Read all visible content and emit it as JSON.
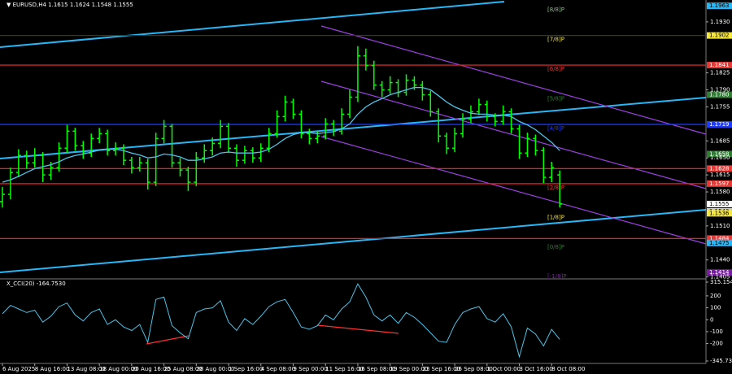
{
  "chart_data": {
    "type": "ohlc",
    "title": "▼ EURUSD,H4 1.1615 1.1624 1.1548 1.1555",
    "color": "#00ff00",
    "ma_color": "#4fc3e8",
    "categories": [
      "6 Aug 2025",
      null,
      null,
      null,
      "8 Aug 16:00",
      null,
      null,
      null,
      "13 Aug 08:00",
      null,
      null,
      null,
      "18 Aug 00:00",
      null,
      null,
      null,
      "20 Aug 16:00",
      null,
      null,
      null,
      "25 Aug 08:00",
      null,
      null,
      null,
      "28 Aug 00:00",
      null,
      null,
      null,
      "1 Sep 16:00",
      null,
      null,
      null,
      "4 Sep 08:00",
      null,
      null,
      null,
      "9 Sep 00:00",
      null,
      null,
      null,
      "11 Sep 16:00",
      null,
      null,
      null,
      "16 Sep 08:00",
      null,
      null,
      null,
      "19 Sep 00:00",
      null,
      null,
      null,
      "23 Sep 16:00",
      null,
      null,
      null,
      "26 Sep 08:00",
      null,
      null,
      null,
      "1 Oct 00:00",
      null,
      null,
      null,
      "3 Oct 16:00",
      null,
      null,
      null,
      "8 Oct 08:00",
      null
    ],
    "candles": [
      [
        1.156,
        1.159,
        1.1548,
        1.1575
      ],
      [
        1.1575,
        1.163,
        1.1565,
        1.162
      ],
      [
        1.162,
        1.1668,
        1.161,
        1.1655
      ],
      [
        1.1655,
        1.1665,
        1.1628,
        1.164
      ],
      [
        1.164,
        1.167,
        1.163,
        1.1655
      ],
      [
        1.1655,
        1.1662,
        1.16,
        1.1615
      ],
      [
        1.1615,
        1.1642,
        1.1605,
        1.163
      ],
      [
        1.163,
        1.1682,
        1.1622,
        1.167
      ],
      [
        1.167,
        1.1718,
        1.166,
        1.1705
      ],
      [
        1.1705,
        1.1712,
        1.1665,
        1.1675
      ],
      [
        1.1675,
        1.1685,
        1.1648,
        1.166
      ],
      [
        1.166,
        1.17,
        1.1652,
        1.169
      ],
      [
        1.169,
        1.1712,
        1.168,
        1.17
      ],
      [
        1.17,
        1.1708,
        1.1655,
        1.1665
      ],
      [
        1.1665,
        1.1682,
        1.1655,
        1.167
      ],
      [
        1.167,
        1.1678,
        1.1635,
        1.1645
      ],
      [
        1.1645,
        1.1652,
        1.1618,
        1.163
      ],
      [
        1.163,
        1.1652,
        1.1622,
        1.164
      ],
      [
        1.164,
        1.1648,
        1.1585,
        1.16
      ],
      [
        1.16,
        1.1702,
        1.1592,
        1.169
      ],
      [
        1.169,
        1.1728,
        1.168,
        1.1715
      ],
      [
        1.1715,
        1.172,
        1.163,
        1.164
      ],
      [
        1.164,
        1.165,
        1.1612,
        1.1625
      ],
      [
        1.1625,
        1.1632,
        1.1582,
        1.16
      ],
      [
        1.16,
        1.1662,
        1.1592,
        1.165
      ],
      [
        1.165,
        1.1678,
        1.164,
        1.1665
      ],
      [
        1.1665,
        1.1692,
        1.1655,
        1.168
      ],
      [
        1.168,
        1.1728,
        1.167,
        1.1715
      ],
      [
        1.1715,
        1.1722,
        1.166,
        1.167
      ],
      [
        1.167,
        1.1678,
        1.1632,
        1.1645
      ],
      [
        1.1645,
        1.1675,
        1.1638,
        1.1665
      ],
      [
        1.1665,
        1.1672,
        1.164,
        1.165
      ],
      [
        1.165,
        1.168,
        1.1642,
        1.167
      ],
      [
        1.167,
        1.1712,
        1.1662,
        1.17
      ],
      [
        1.17,
        1.1748,
        1.1692,
        1.1735
      ],
      [
        1.1735,
        1.1778,
        1.1725,
        1.1765
      ],
      [
        1.1765,
        1.1772,
        1.173,
        1.174
      ],
      [
        1.174,
        1.1748,
        1.169,
        1.17
      ],
      [
        1.17,
        1.171,
        1.1678,
        1.169
      ],
      [
        1.169,
        1.1705,
        1.168,
        1.1695
      ],
      [
        1.1695,
        1.1732,
        1.1688,
        1.172
      ],
      [
        1.172,
        1.1728,
        1.1695,
        1.1705
      ],
      [
        1.1705,
        1.1752,
        1.1698,
        1.174
      ],
      [
        1.174,
        1.179,
        1.1732,
        1.1775
      ],
      [
        1.1775,
        1.188,
        1.1765,
        1.186
      ],
      [
        1.186,
        1.1875,
        1.183,
        1.184
      ],
      [
        1.184,
        1.185,
        1.179,
        1.18
      ],
      [
        1.18,
        1.1808,
        1.1775,
        1.179
      ],
      [
        1.179,
        1.1818,
        1.1782,
        1.1805
      ],
      [
        1.1805,
        1.1812,
        1.1775,
        1.1785
      ],
      [
        1.1785,
        1.1822,
        1.1778,
        1.181
      ],
      [
        1.181,
        1.1818,
        1.179,
        1.18
      ],
      [
        1.18,
        1.1808,
        1.1768,
        1.178
      ],
      [
        1.178,
        1.1788,
        1.1735,
        1.1745
      ],
      [
        1.1745,
        1.1752,
        1.1682,
        1.1695
      ],
      [
        1.1695,
        1.1702,
        1.1658,
        1.167
      ],
      [
        1.167,
        1.1712,
        1.1662,
        1.17
      ],
      [
        1.17,
        1.1742,
        1.1692,
        1.173
      ],
      [
        1.173,
        1.1758,
        1.1722,
        1.1745
      ],
      [
        1.1745,
        1.1772,
        1.1738,
        1.176
      ],
      [
        1.176,
        1.1768,
        1.1725,
        1.1735
      ],
      [
        1.1735,
        1.1742,
        1.1715,
        1.1725
      ],
      [
        1.1725,
        1.1758,
        1.1718,
        1.1745
      ],
      [
        1.1745,
        1.1752,
        1.17,
        1.171
      ],
      [
        1.171,
        1.1718,
        1.1648,
        1.166
      ],
      [
        1.166,
        1.1702,
        1.1652,
        1.169
      ],
      [
        1.169,
        1.1698,
        1.1655,
        1.1665
      ],
      [
        1.1665,
        1.1672,
        1.1598,
        1.161
      ],
      [
        1.161,
        1.1642,
        1.16,
        1.163
      ],
      [
        1.1615,
        1.1624,
        1.1548,
        1.1555
      ]
    ],
    "ma": [
      1.16,
      1.1605,
      1.1612,
      1.162,
      1.1628,
      1.1632,
      1.1636,
      1.1642,
      1.165,
      1.1655,
      1.1658,
      1.1662,
      1.1666,
      1.1668,
      1.1668,
      1.1665,
      1.166,
      1.1656,
      1.165,
      1.1652,
      1.1658,
      1.1656,
      1.1652,
      1.1645,
      1.1645,
      1.1648,
      1.1652,
      1.166,
      1.1662,
      1.166,
      1.166,
      1.166,
      1.1662,
      1.1668,
      1.1678,
      1.169,
      1.1698,
      1.1702,
      1.1702,
      1.17,
      1.1702,
      1.1704,
      1.171,
      1.172,
      1.174,
      1.1755,
      1.1765,
      1.1772,
      1.178,
      1.1785,
      1.179,
      1.1795,
      1.1795,
      1.179,
      1.1778,
      1.1765,
      1.1755,
      1.1748,
      1.1742,
      1.174,
      1.174,
      1.1738,
      1.1738,
      1.1735,
      1.1725,
      1.1718,
      1.1708,
      1.1695,
      1.1682,
      1.1665
    ],
    "ylim": [
      1.1401,
      1.1975
    ],
    "yticks": [
      {
        "value": 1.193,
        "label": "1.1930"
      },
      {
        "value": 1.1825,
        "label": "1.1825"
      },
      {
        "value": 1.179,
        "label": "1.1790"
      },
      {
        "value": 1.1755,
        "label": "1.1755"
      },
      {
        "value": 1.1685,
        "label": "1.1685"
      },
      {
        "value": 1.165,
        "label": "1.1650"
      },
      {
        "value": 1.1615,
        "label": "1.1615"
      },
      {
        "value": 1.158,
        "label": "1.1580"
      },
      {
        "value": 1.151,
        "label": "1.1510"
      },
      {
        "value": 1.144,
        "label": "1.1440"
      },
      {
        "value": 1.1405,
        "label": "1.1405"
      }
    ],
    "levels": [
      {
        "value": 1.1963,
        "label": "1.1963",
        "color": "#29b6f6",
        "tag": "[8/8]P",
        "tag_color": "#8fbc8f"
      },
      {
        "value": 1.1902,
        "label": "1.1902",
        "color": "#f5e642",
        "tag": "[7/8]P",
        "tag_color": "#f5e642",
        "line": "#3a3a10"
      },
      {
        "value": 1.1841,
        "label": "1.1841",
        "color": "#e53935",
        "tag": "[6/8]P",
        "tag_color": "#e53935",
        "line": "#c62828"
      },
      {
        "value": 1.178,
        "label": "1.1780",
        "color": "#2e7d32",
        "tag": "[5/8]P",
        "tag_color": "#2e7d32"
      },
      {
        "value": 1.1719,
        "label": "1.1719",
        "color": "#1e3cff",
        "tag": "[4/8]P",
        "tag_color": "#1e3cff",
        "line": "#1e3cff"
      },
      {
        "value": 1.1658,
        "label": "1.1658",
        "color": "#2e7d32"
      },
      {
        "value": 1.1628,
        "label": "1.1628",
        "color": "#e53935",
        "line": "#ff1a1a"
      },
      {
        "value": 1.1597,
        "label": "1.1597",
        "color": "#e53935",
        "tag": "[2/8]P",
        "tag_color": "#e53935",
        "line": "#ff1a1a"
      },
      {
        "value": 1.1555,
        "label": "1.1555",
        "color": "#ffffff"
      },
      {
        "value": 1.154,
        "label": "1.1540",
        "color": "#cccccc"
      },
      {
        "value": 1.1536,
        "label": "1.1536",
        "color": "#f5e642",
        "tag": "[1/8]P",
        "tag_color": "#f5e642"
      },
      {
        "value": 1.1484,
        "label": "1.1484",
        "color": "#e53935",
        "line": "#ff1a1a"
      },
      {
        "value": 1.1475,
        "label": "1.1475",
        "color": "#29b6f6",
        "tag": "[0/8]P",
        "tag_color": "#2e7d32"
      },
      {
        "value": 1.1414,
        "label": "1.1414",
        "color": "#7b1fa2",
        "tag": "[-1/8]P",
        "tag_color": "#7b1fa2"
      }
    ],
    "indicator": {
      "title": "X_CCI(20) -164.7530",
      "color": "#4fc3e8",
      "values": [
        50,
        120,
        90,
        60,
        80,
        -20,
        30,
        110,
        140,
        40,
        -10,
        60,
        90,
        -40,
        0,
        -60,
        -90,
        -40,
        -190,
        170,
        190,
        -50,
        -110,
        -160,
        60,
        90,
        100,
        160,
        -20,
        -90,
        10,
        -40,
        30,
        110,
        150,
        170,
        60,
        -60,
        -80,
        -50,
        40,
        0,
        90,
        150,
        300,
        190,
        40,
        -10,
        40,
        -30,
        60,
        20,
        -40,
        -110,
        -180,
        -190,
        -40,
        60,
        90,
        110,
        10,
        -20,
        50,
        -60,
        -310,
        -70,
        -120,
        -220,
        -80,
        -164.753
      ],
      "ylim": [
        -345.7325,
        315.1542
      ],
      "yticks": [
        315.1542,
        200,
        100,
        0,
        -100,
        -200,
        -345.7325
      ]
    }
  }
}
